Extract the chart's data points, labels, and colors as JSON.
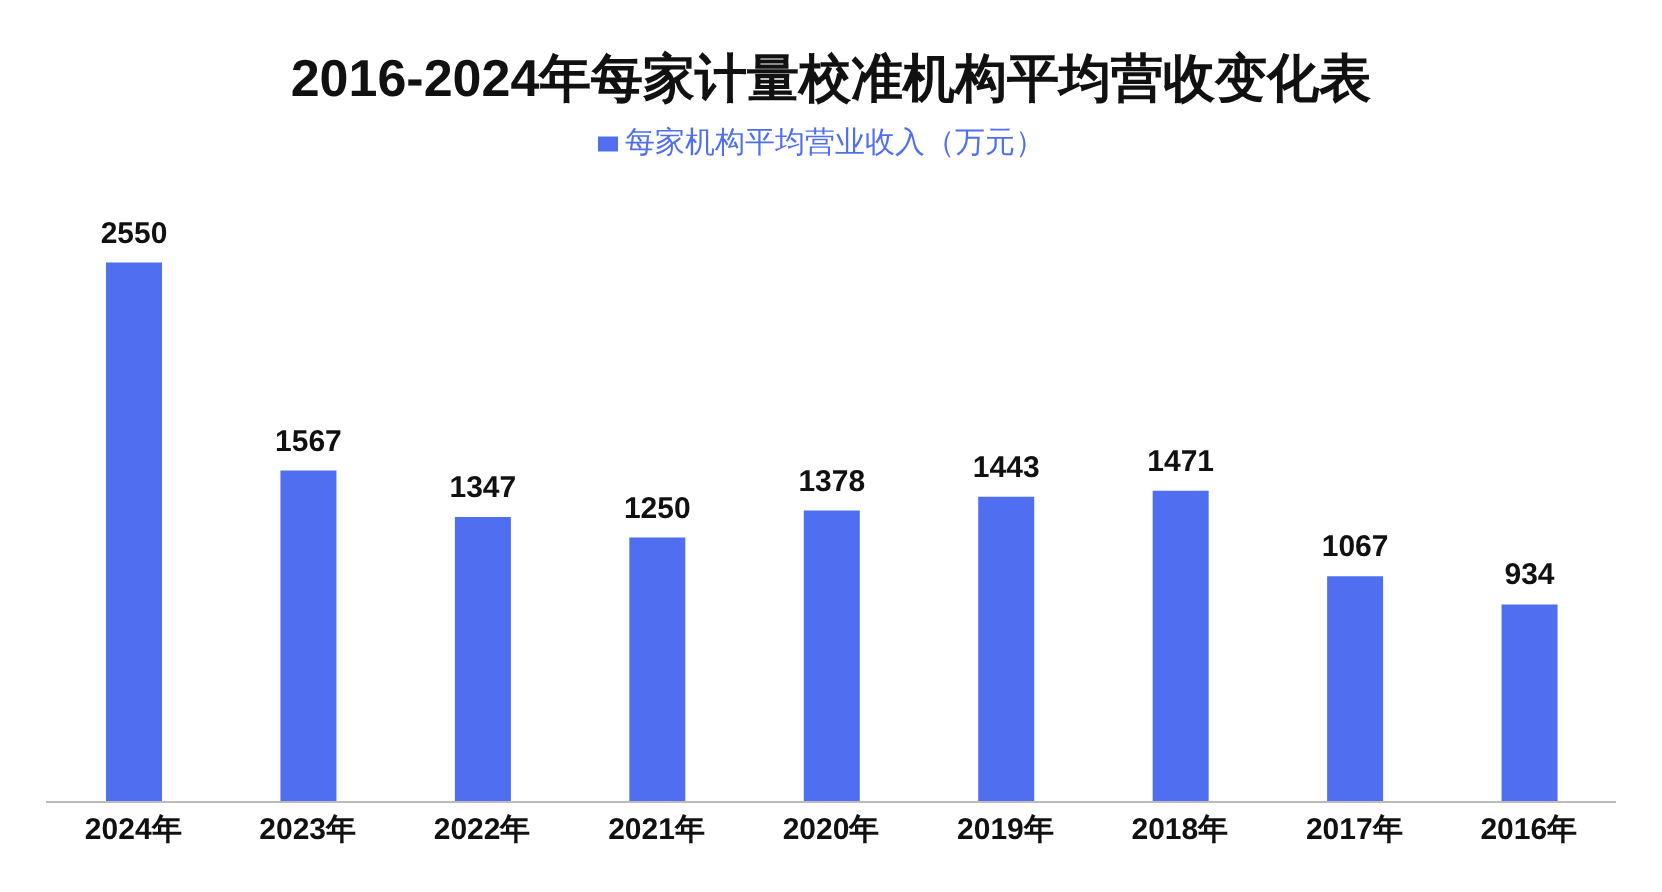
{
  "chart_data": {
    "type": "bar",
    "title": "2016-2024年每家计量校准机构平均营收变化表",
    "categories": [
      "2024年",
      "2023年",
      "2022年",
      "2021年",
      "2020年",
      "2019年",
      "2018年",
      "2017年",
      "2016年"
    ],
    "series": [
      {
        "name": "每家机构平均营业收入（万元）",
        "color": "#4f6ff0",
        "values": [
          2550,
          1567,
          1347,
          1250,
          1378,
          1443,
          1471,
          1067,
          934
        ]
      }
    ],
    "data_labels": true,
    "legend": "top",
    "grid": false,
    "tick_labels": "x"
  }
}
